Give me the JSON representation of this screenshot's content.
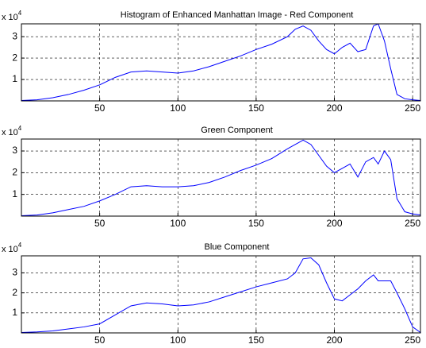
{
  "chart_data": [
    {
      "type": "line",
      "title": "Histogram of Enhanced Manhattan Image - Red Component",
      "axis_multiplier": "x 10",
      "axis_multiplier_exp": "4",
      "xlim": [
        0,
        255
      ],
      "xticks": [
        50,
        100,
        150,
        200,
        250
      ],
      "ylim": [
        0,
        3.6
      ],
      "yticks": [
        1,
        2,
        3
      ],
      "grid": true,
      "x": [
        0,
        10,
        20,
        30,
        40,
        50,
        60,
        70,
        80,
        90,
        100,
        110,
        120,
        130,
        140,
        150,
        160,
        170,
        175,
        180,
        185,
        190,
        195,
        200,
        205,
        210,
        215,
        220,
        225,
        228,
        232,
        236,
        240,
        245,
        250,
        255
      ],
      "series": [
        {
          "name": "Red",
          "color": "#0000ff",
          "values": [
            0.02,
            0.05,
            0.15,
            0.3,
            0.5,
            0.75,
            1.1,
            1.35,
            1.4,
            1.35,
            1.3,
            1.4,
            1.6,
            1.85,
            2.1,
            2.4,
            2.65,
            3.0,
            3.35,
            3.5,
            3.3,
            2.8,
            2.4,
            2.2,
            2.5,
            2.7,
            2.3,
            2.4,
            3.5,
            3.6,
            2.8,
            1.5,
            0.3,
            0.1,
            0.05,
            0.02
          ]
        }
      ]
    },
    {
      "type": "line",
      "title": "Green Component",
      "axis_multiplier": "x 10",
      "axis_multiplier_exp": "4",
      "xlim": [
        0,
        255
      ],
      "xticks": [
        50,
        100,
        150,
        200,
        250
      ],
      "ylim": [
        0,
        3.55
      ],
      "yticks": [
        1,
        2,
        3
      ],
      "grid": true,
      "x": [
        0,
        10,
        20,
        30,
        40,
        50,
        60,
        70,
        80,
        90,
        100,
        110,
        120,
        130,
        140,
        150,
        160,
        170,
        175,
        180,
        185,
        190,
        195,
        200,
        205,
        210,
        215,
        220,
        225,
        228,
        232,
        236,
        240,
        245,
        250,
        255
      ],
      "series": [
        {
          "name": "Green",
          "color": "#0000ff",
          "values": [
            0.02,
            0.05,
            0.15,
            0.3,
            0.45,
            0.7,
            1.0,
            1.35,
            1.4,
            1.35,
            1.35,
            1.4,
            1.55,
            1.8,
            2.1,
            2.35,
            2.65,
            3.1,
            3.3,
            3.5,
            3.3,
            2.8,
            2.3,
            2.0,
            2.2,
            2.4,
            1.8,
            2.5,
            2.7,
            2.4,
            3.0,
            2.6,
            0.8,
            0.2,
            0.1,
            0.05
          ]
        }
      ]
    },
    {
      "type": "line",
      "title": "Blue Component",
      "axis_multiplier": "x 10",
      "axis_multiplier_exp": "4",
      "xlim": [
        0,
        255
      ],
      "xticks": [
        50,
        100,
        150,
        200,
        250
      ],
      "ylim": [
        0,
        3.85
      ],
      "yticks": [
        1,
        2,
        3
      ],
      "grid": true,
      "x": [
        0,
        10,
        20,
        30,
        40,
        50,
        60,
        70,
        80,
        90,
        100,
        110,
        120,
        130,
        140,
        150,
        160,
        170,
        175,
        180,
        185,
        190,
        195,
        200,
        205,
        210,
        215,
        220,
        225,
        228,
        232,
        236,
        240,
        245,
        250,
        255
      ],
      "series": [
        {
          "name": "Blue",
          "color": "#0000ff",
          "values": [
            0.02,
            0.05,
            0.1,
            0.2,
            0.3,
            0.45,
            0.9,
            1.35,
            1.5,
            1.45,
            1.35,
            1.4,
            1.55,
            1.8,
            2.05,
            2.3,
            2.5,
            2.7,
            3.0,
            3.7,
            3.75,
            3.4,
            2.5,
            1.7,
            1.6,
            1.9,
            2.2,
            2.6,
            2.9,
            2.6,
            2.6,
            2.6,
            2.0,
            1.2,
            0.3,
            0.02
          ]
        }
      ]
    }
  ]
}
